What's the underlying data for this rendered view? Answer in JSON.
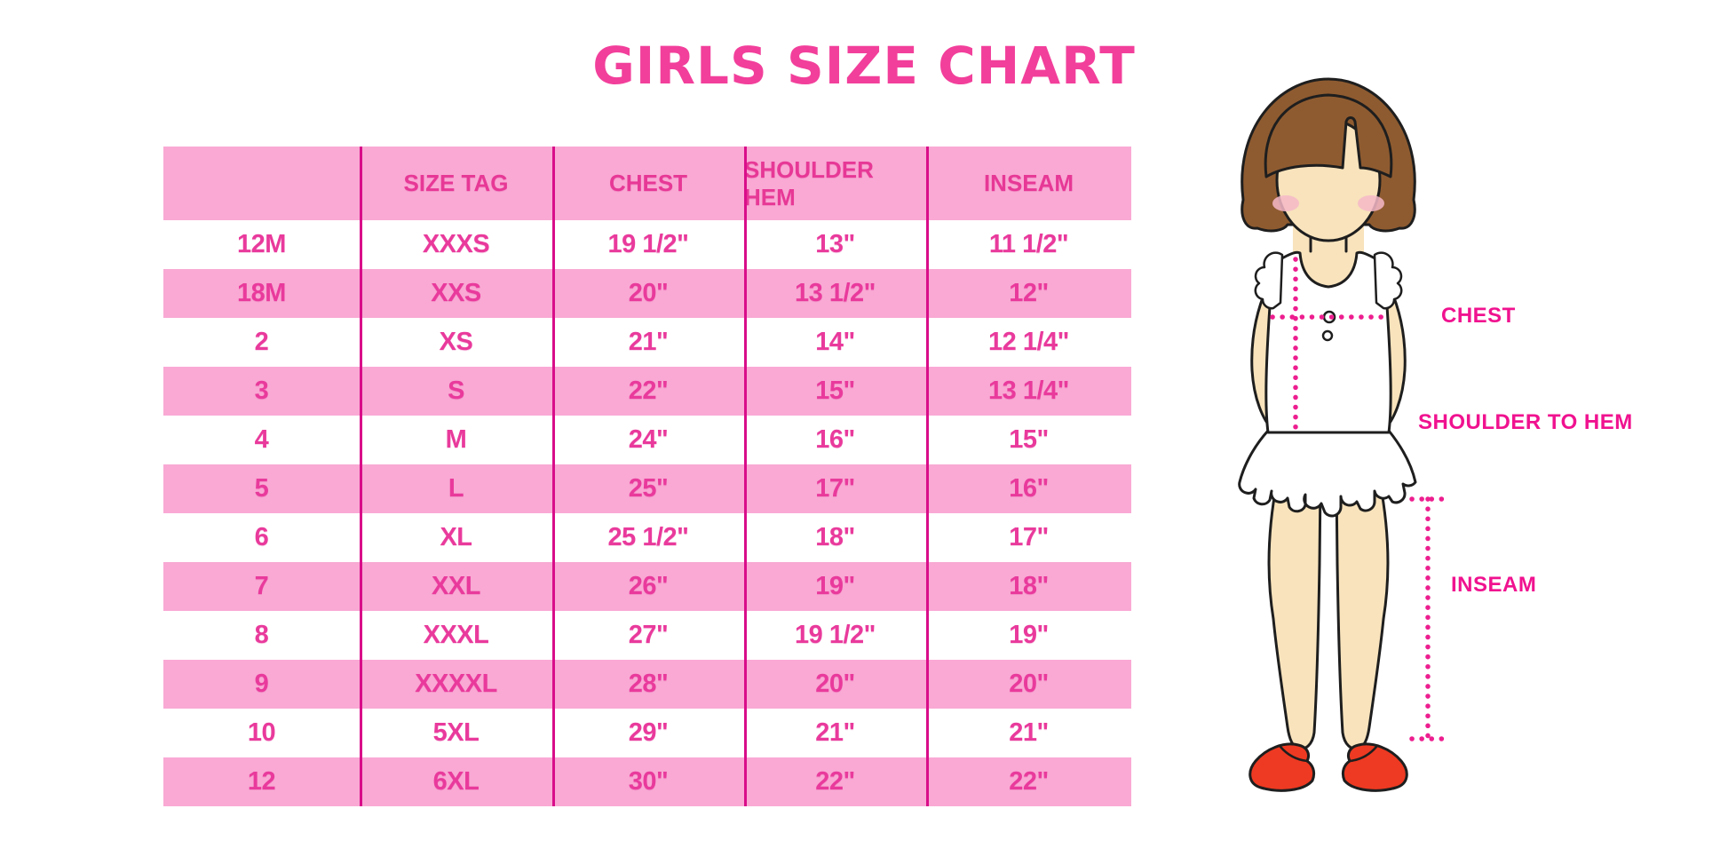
{
  "title": "GIRLS SIZE CHART",
  "colors": {
    "title_pink": "#F23F9B",
    "row_pink": "#F9A9D4",
    "table_text": "#E93A9C",
    "divider_magenta": "#D90D8A",
    "label_pink": "#F0128F",
    "dotted_line": "#ED1E8F",
    "skin": "#F8E3BC",
    "hair_brown": "#8E5B30",
    "shoe_red": "#EE3A22",
    "outline": "#1E1E1E"
  },
  "table": {
    "headers": [
      "",
      "SIZE TAG",
      "CHEST",
      "SHOULDER HEM",
      "INSEAM"
    ],
    "rows": [
      [
        "12M",
        "XXXS",
        "19 1/2\"",
        "13\"",
        "11 1/2\""
      ],
      [
        "18M",
        "XXS",
        "20\"",
        "13 1/2\"",
        "12\""
      ],
      [
        "2",
        "XS",
        "21\"",
        "14\"",
        "12 1/4\""
      ],
      [
        "3",
        "S",
        "22\"",
        "15\"",
        "13 1/4\""
      ],
      [
        "4",
        "M",
        "24\"",
        "16\"",
        "15\""
      ],
      [
        "5",
        "L",
        "25\"",
        "17\"",
        "16\""
      ],
      [
        "6",
        "XL",
        "25 1/2\"",
        "18\"",
        "17\""
      ],
      [
        "7",
        "XXL",
        "26\"",
        "19\"",
        "18\""
      ],
      [
        "8",
        "XXXL",
        "27\"",
        "19 1/2\"",
        "19\""
      ],
      [
        "9",
        "XXXXL",
        "28\"",
        "20\"",
        "20\""
      ],
      [
        "10",
        "5XL",
        "29\"",
        "21\"",
        "21\""
      ],
      [
        "12",
        "6XL",
        "30\"",
        "22\"",
        "22\""
      ]
    ]
  },
  "figure_labels": {
    "chest": "CHEST",
    "shoulder_to_hem": "SHOULDER TO HEM",
    "inseam": "INSEAM"
  }
}
